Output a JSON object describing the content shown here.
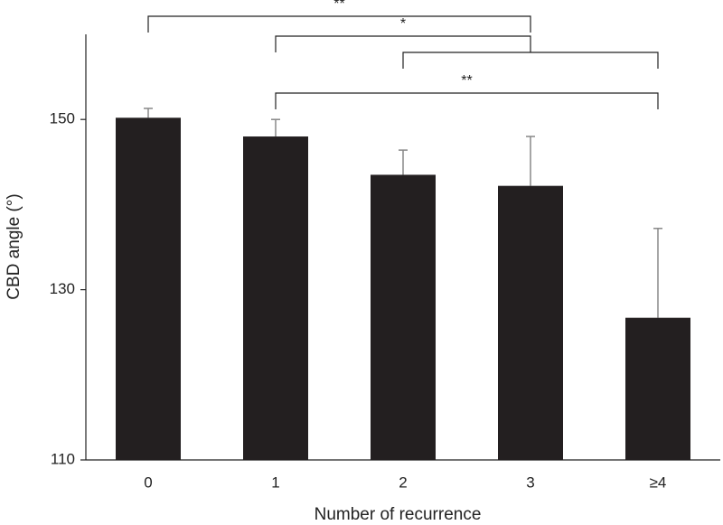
{
  "chart_data": {
    "type": "bar",
    "x_label": "Number of recurrence",
    "y_label": "CBD angle (°)",
    "categories": [
      "0",
      "1",
      "2",
      "3",
      "≥4"
    ],
    "values": [
      150.2,
      148.0,
      143.5,
      142.2,
      126.7
    ],
    "errors": [
      1.1,
      2.0,
      2.9,
      5.8,
      10.5
    ],
    "color": "#231f20",
    "error_color": "#888888",
    "ylim": [
      110,
      160
    ],
    "yticks": [
      110,
      130,
      150
    ],
    "significance": [
      {
        "from": 0,
        "to": 3,
        "label": "**"
      },
      {
        "from": 1,
        "to": 3,
        "label": "*"
      },
      {
        "from": 2,
        "to": 4
      },
      {
        "from": 1,
        "to": 4,
        "label": "**"
      }
    ]
  }
}
